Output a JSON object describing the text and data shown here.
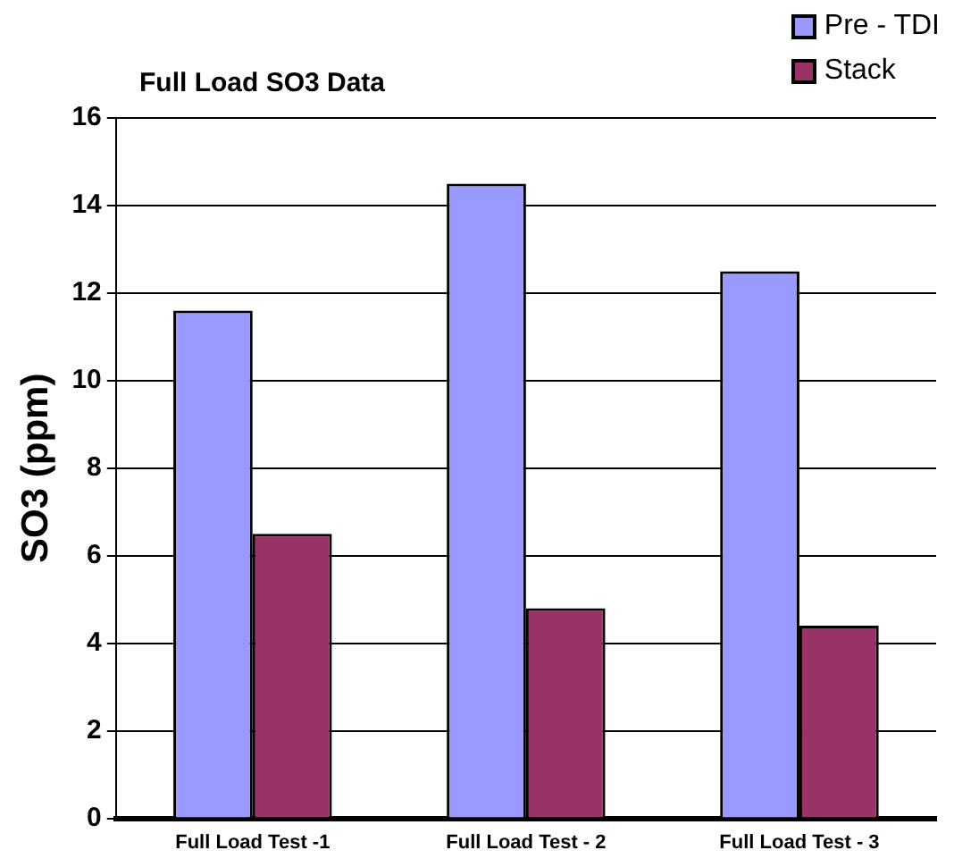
{
  "chart_data": {
    "type": "bar",
    "title": "Full Load SO3 Data",
    "ylabel": "SO3 (ppm)",
    "categories": [
      "Full Load Test -1",
      "Full Load Test - 2",
      "Full Load Test - 3"
    ],
    "series": [
      {
        "name": "Pre - TDI",
        "color": "#9999ff",
        "values": [
          11.6,
          14.5,
          12.5
        ]
      },
      {
        "name": "Stack",
        "color": "#993366",
        "values": [
          6.5,
          4.8,
          4.4
        ]
      }
    ],
    "ylim": [
      0,
      16
    ],
    "yticks": [
      0,
      2,
      4,
      6,
      8,
      10,
      12,
      14,
      16
    ],
    "grid": "y",
    "legend": "top right"
  }
}
